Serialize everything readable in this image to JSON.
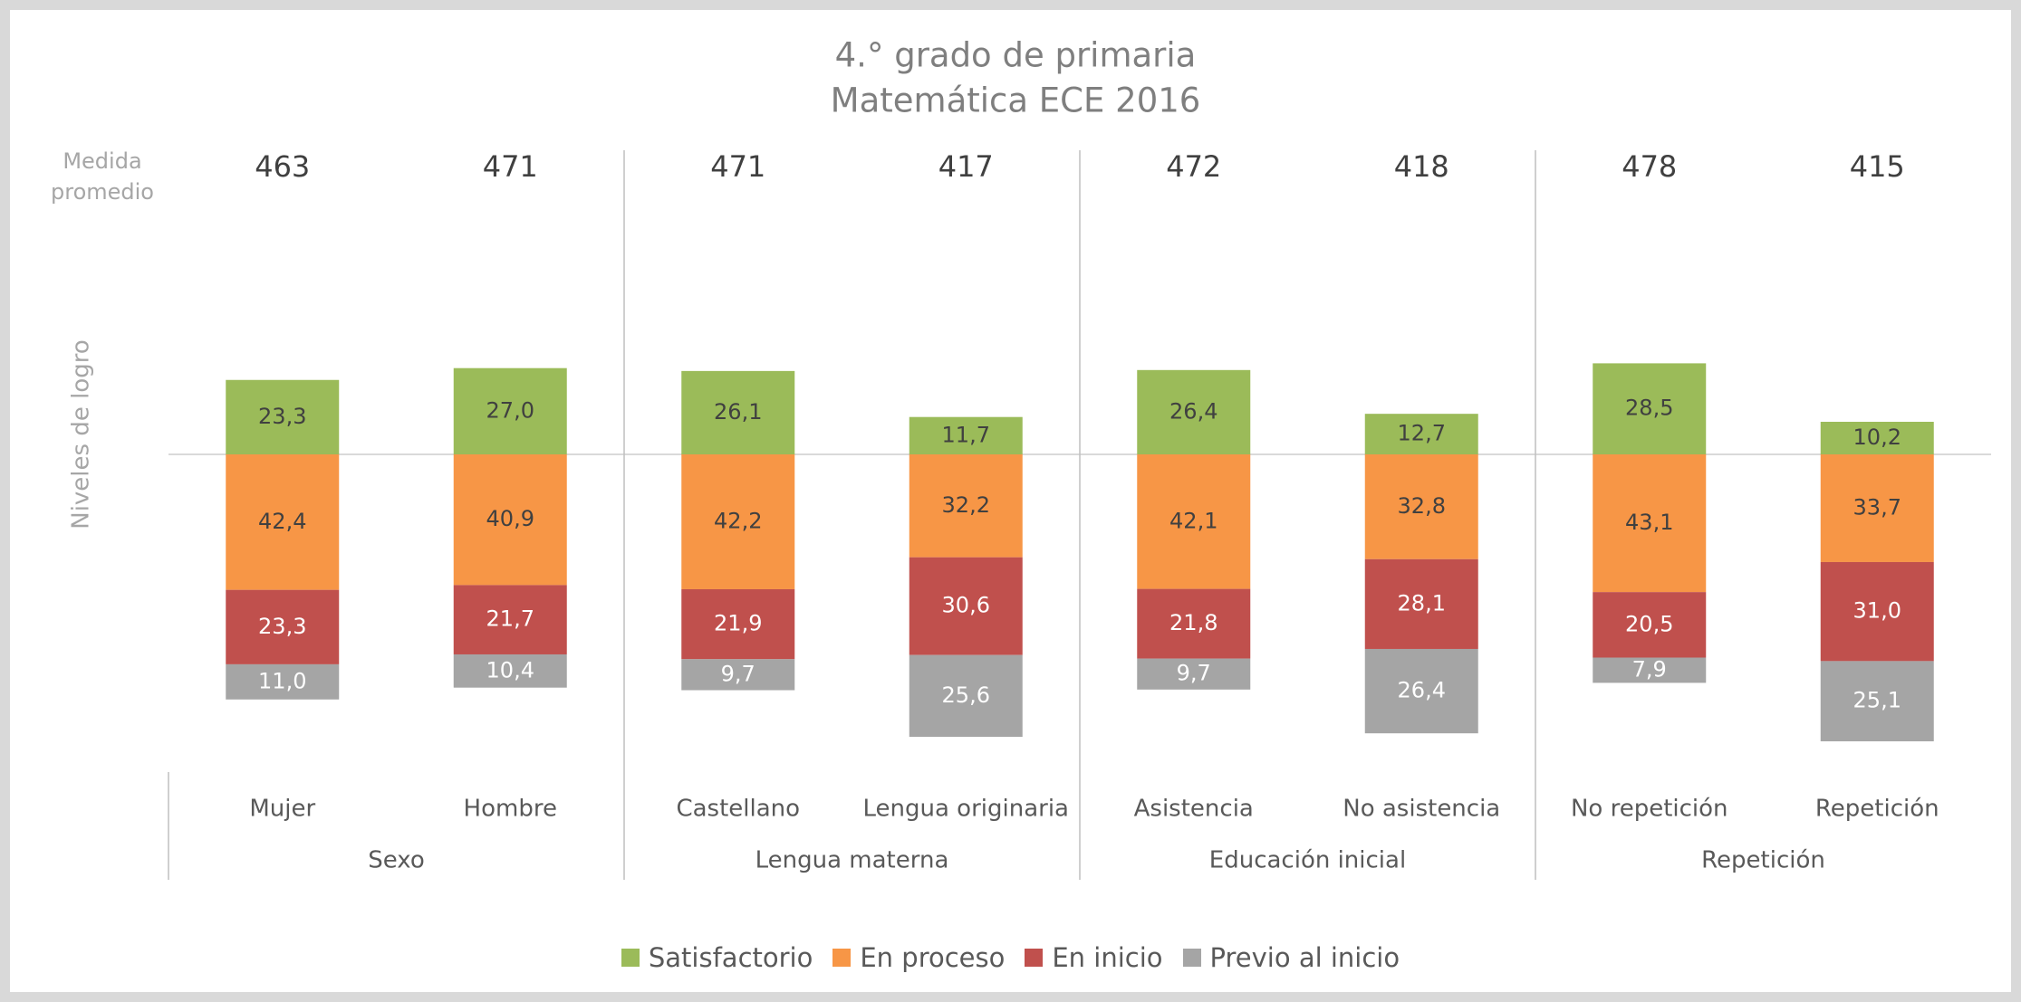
{
  "chart_data": {
    "type": "diverging_bar",
    "title": "4.° grado de primaria",
    "subtitle": "Matemática ECE 2016",
    "y_label": "Niveles de logro",
    "average_label": "Medida promedio",
    "averages": [
      463,
      471,
      471,
      417,
      472,
      418,
      478,
      415
    ],
    "categories": [
      "Mujer",
      "Hombre",
      "Castellano",
      "Lengua originaria",
      "Asistencia",
      "No asistencia",
      "No repetición",
      "Repetición"
    ],
    "groups": [
      "Sexo",
      "Lengua materna",
      "Educación inicial",
      "Repetición"
    ],
    "series": [
      {
        "name": "Satisfactorio",
        "color": "#9bbb59",
        "values": [
          23.3,
          27.0,
          26.1,
          11.7,
          26.4,
          12.7,
          28.5,
          10.2
        ],
        "value_labels": [
          "23,3",
          "27,0",
          "26,1",
          "11,7",
          "26,4",
          "12,7",
          "28,5",
          "10,2"
        ]
      },
      {
        "name": "En proceso",
        "color": "#f79646",
        "values": [
          42.4,
          40.9,
          42.2,
          32.2,
          42.1,
          32.8,
          43.1,
          33.7
        ],
        "value_labels": [
          "42,4",
          "40,9",
          "42,2",
          "32,2",
          "42,1",
          "32,8",
          "43,1",
          "33,7"
        ]
      },
      {
        "name": "En inicio",
        "color": "#c0504d",
        "values": [
          23.3,
          21.7,
          21.9,
          30.6,
          21.8,
          28.1,
          20.5,
          31.0
        ],
        "value_labels": [
          "23,3",
          "21,7",
          "21,9",
          "30,6",
          "21,8",
          "28,1",
          "20,5",
          "31,0"
        ]
      },
      {
        "name": "Previo al inicio",
        "color": "#a5a5a5",
        "values": [
          11.0,
          10.4,
          9.7,
          25.6,
          9.7,
          26.4,
          7.9,
          25.1
        ],
        "value_labels": [
          "11,0",
          "10,4",
          "9,7",
          "25,6",
          "9,7",
          "26,4",
          "7,9",
          "25,1"
        ]
      }
    ]
  }
}
